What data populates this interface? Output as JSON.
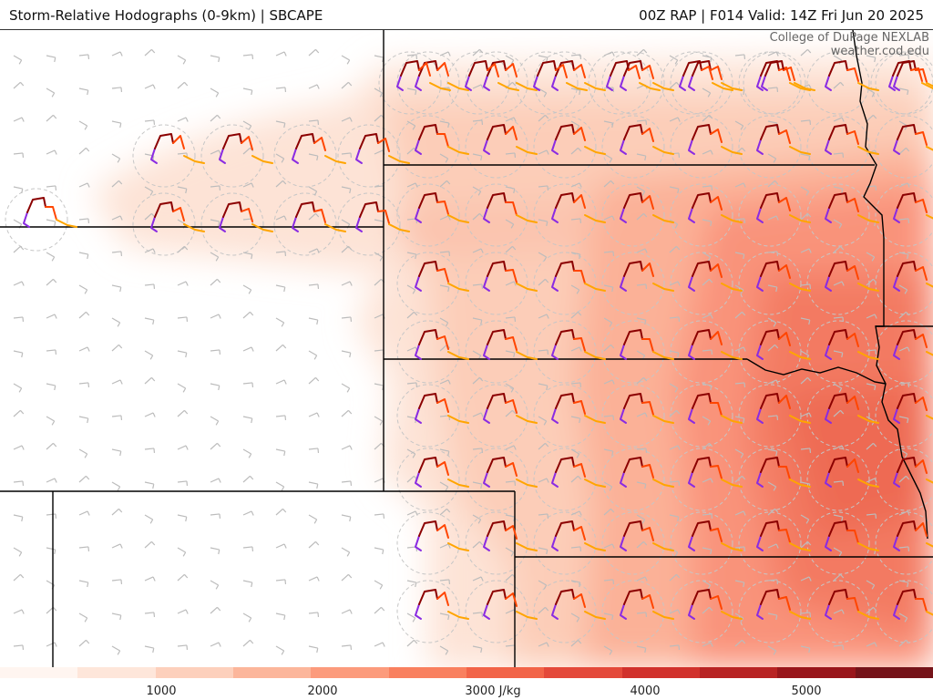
{
  "header": {
    "title_left": "Storm-Relative Hodographs (0-9km) | SBCAPE",
    "title_right": "00Z RAP | F014 Valid: 14Z Fri Jun 20 2025"
  },
  "credit": {
    "line1": "College of DuPage NEXLAB",
    "line2": "weather.cod.edu"
  },
  "colorbar": {
    "min": 0,
    "max": 6000,
    "colors": [
      "#fff5f0",
      "#fee6da",
      "#fdd0bc",
      "#fcb69b",
      "#fc9b7c",
      "#f9805f",
      "#f26448",
      "#e4493a",
      "#d1312c",
      "#b82323",
      "#99161b",
      "#751319"
    ],
    "ticks": [
      {
        "value": 1000,
        "label": "1000"
      },
      {
        "value": 2000,
        "label": "2000"
      },
      {
        "value": 3000,
        "label": "3000 J/kg"
      },
      {
        "value": 4000,
        "label": "4000"
      },
      {
        "value": 5000,
        "label": "5000"
      }
    ]
  },
  "hodograph_colors": {
    "layer_0_1km": "#8a2be2",
    "layer_1_3km": "#8b0000",
    "layer_3_6km": "#ff4500",
    "layer_6_9km": "#ffa500"
  },
  "map_colors": {
    "state_border": "#000000",
    "wind_barb": "#bbbbbb",
    "range_ring": "#bbbbbb"
  }
}
